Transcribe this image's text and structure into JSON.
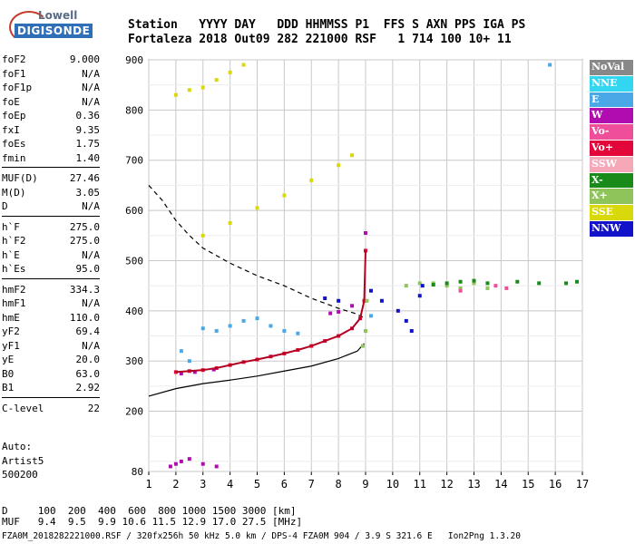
{
  "logo": {
    "top": "Lowell",
    "bottom": "DIGISONDE"
  },
  "header": {
    "labels": "Station   YYYY DAY   DDD HHMMSS P1  FFS S AXN PPS IGA PS",
    "values": "Fortaleza 2018 Out09 282 221000 RSF   1 714 100 10+ 11"
  },
  "params": {
    "group1": [
      {
        "name": "foF2",
        "value": "9.000"
      },
      {
        "name": "foF1",
        "value": "N/A"
      },
      {
        "name": "foF1p",
        "value": "N/A"
      },
      {
        "name": "foE",
        "value": "N/A"
      },
      {
        "name": "foEp",
        "value": "0.36"
      },
      {
        "name": "fxI",
        "value": "9.35"
      },
      {
        "name": "foEs",
        "value": "1.75"
      },
      {
        "name": "fmin",
        "value": "1.40"
      }
    ],
    "group2": [
      {
        "name": "MUF(D)",
        "value": "27.46"
      },
      {
        "name": "M(D)",
        "value": "3.05"
      },
      {
        "name": "D",
        "value": "N/A"
      }
    ],
    "group3": [
      {
        "name": "h`F",
        "value": "275.0"
      },
      {
        "name": "h`F2",
        "value": "275.0"
      },
      {
        "name": "h`E",
        "value": "N/A"
      },
      {
        "name": "h`Es",
        "value": "95.0"
      }
    ],
    "group4": [
      {
        "name": "hmF2",
        "value": "334.3"
      },
      {
        "name": "hmF1",
        "value": "N/A"
      },
      {
        "name": "hmE",
        "value": "110.0"
      },
      {
        "name": "yF2",
        "value": "69.4"
      },
      {
        "name": "yF1",
        "value": "N/A"
      },
      {
        "name": "yE",
        "value": "20.0"
      },
      {
        "name": "B0",
        "value": "63.0"
      },
      {
        "name": "B1",
        "value": "2.92"
      }
    ],
    "group5": [
      {
        "name": "C-level",
        "value": "22"
      }
    ]
  },
  "auto": {
    "line1": "Auto:",
    "line2": "Artist5",
    "line3": "500200"
  },
  "legend": [
    {
      "label": "NoVal",
      "color": "#888888"
    },
    {
      "label": "NNE",
      "color": "#33d6f0"
    },
    {
      "label": "E",
      "color": "#4aa8e6"
    },
    {
      "label": "W",
      "color": "#b00cb0"
    },
    {
      "label": "Vo-",
      "color": "#ef4f9a"
    },
    {
      "label": "Vo+",
      "color": "#e3063a"
    },
    {
      "label": "SSW",
      "color": "#f7a8b8"
    },
    {
      "label": "X-",
      "color": "#1a8a1a"
    },
    {
      "label": "X+",
      "color": "#8ec45a"
    },
    {
      "label": "SSE",
      "color": "#d8d80a"
    },
    {
      "label": "NNW",
      "color": "#1212c8"
    }
  ],
  "muf_table": {
    "d_row": "D     100  200  400  600  800 1000 1500 3000 [km]",
    "muf_row": "MUF   9.4  9.5  9.9 10.6 11.5 12.9 17.0 27.5 [MHz]"
  },
  "footer": "FZA0M_2018282221000.RSF / 320fx256h 50 kHz 5.0 km / DPS-4 FZA0M 904 / 3.9 S 321.6 E   Ion2Png 1.3.20",
  "chart_data": {
    "type": "scatter",
    "title": "",
    "xlabel": "",
    "ylabel": "",
    "xlim": [
      1,
      17
    ],
    "ylim": [
      80,
      900
    ],
    "x_ticks": [
      1,
      2,
      3,
      4,
      5,
      6,
      7,
      8,
      9,
      10,
      11,
      12,
      13,
      14,
      15,
      16,
      17
    ],
    "y_ticks": [
      80,
      200,
      300,
      400,
      500,
      600,
      700,
      800,
      900
    ],
    "grid": true,
    "series": [
      {
        "name": "Vo+",
        "color": "#e3063a",
        "points": [
          [
            2.0,
            278
          ],
          [
            2.5,
            280
          ],
          [
            3,
            282
          ],
          [
            3.5,
            286
          ],
          [
            4,
            292
          ],
          [
            4.5,
            298
          ],
          [
            5,
            303
          ],
          [
            5.5,
            309
          ],
          [
            6,
            315
          ],
          [
            6.5,
            322
          ],
          [
            7,
            330
          ],
          [
            7.5,
            340
          ],
          [
            8,
            350
          ],
          [
            8.5,
            365
          ],
          [
            8.8,
            385
          ],
          [
            8.95,
            420
          ],
          [
            9.0,
            520
          ]
        ]
      },
      {
        "name": "X+",
        "color": "#8ec45a",
        "points": [
          [
            8.9,
            330
          ],
          [
            9.0,
            360
          ],
          [
            9.05,
            420
          ],
          [
            10.5,
            450
          ],
          [
            11,
            455
          ],
          [
            11.5,
            455
          ],
          [
            12,
            450
          ],
          [
            12.5,
            445
          ],
          [
            13,
            455
          ],
          [
            13.5,
            445
          ]
        ]
      },
      {
        "name": "X-",
        "color": "#1a8a1a",
        "points": [
          [
            11.5,
            452
          ],
          [
            12,
            455
          ],
          [
            12.5,
            458
          ],
          [
            13,
            460
          ],
          [
            13.5,
            455
          ],
          [
            14.6,
            458
          ],
          [
            15.4,
            455
          ],
          [
            16.4,
            455
          ],
          [
            16.8,
            458
          ]
        ]
      },
      {
        "name": "NNW",
        "color": "#1212c8",
        "points": [
          [
            7.5,
            425
          ],
          [
            8,
            420
          ],
          [
            9.2,
            440
          ],
          [
            9.6,
            420
          ],
          [
            10.2,
            400
          ],
          [
            10.5,
            380
          ],
          [
            10.7,
            360
          ],
          [
            11,
            430
          ],
          [
            11.1,
            450
          ]
        ]
      },
      {
        "name": "E",
        "color": "#4aa8e6",
        "points": [
          [
            3,
            365
          ],
          [
            3.5,
            360
          ],
          [
            4,
            370
          ],
          [
            4.5,
            380
          ],
          [
            5,
            385
          ],
          [
            5.5,
            370
          ],
          [
            6,
            360
          ],
          [
            6.5,
            355
          ],
          [
            2.2,
            320
          ],
          [
            2.5,
            300
          ],
          [
            9.2,
            390
          ],
          [
            15.8,
            890
          ]
        ]
      },
      {
        "name": "W",
        "color": "#b00cb0",
        "points": [
          [
            2.2,
            275
          ],
          [
            2.7,
            278
          ],
          [
            3.4,
            283
          ],
          [
            7.7,
            395
          ],
          [
            8.0,
            398
          ],
          [
            8.5,
            410
          ],
          [
            9,
            555
          ]
        ]
      },
      {
        "name": "SSE",
        "color": "#d8d80a",
        "points": [
          [
            2,
            830
          ],
          [
            2.5,
            840
          ],
          [
            3,
            845
          ],
          [
            3.5,
            860
          ],
          [
            4,
            875
          ],
          [
            4.5,
            890
          ],
          [
            3,
            550
          ],
          [
            4,
            575
          ],
          [
            5,
            605
          ],
          [
            6,
            630
          ],
          [
            7,
            660
          ],
          [
            8,
            690
          ],
          [
            8.5,
            710
          ]
        ]
      },
      {
        "name": "Vo-",
        "color": "#ef4f9a",
        "points": [
          [
            13.8,
            450
          ],
          [
            14.2,
            445
          ],
          [
            12.5,
            440
          ]
        ]
      },
      {
        "name": "Es",
        "color": "#b00cb0",
        "points": [
          [
            1.8,
            90
          ],
          [
            2,
            95
          ],
          [
            2.2,
            100
          ],
          [
            2.5,
            105
          ],
          [
            3,
            95
          ],
          [
            3.5,
            90
          ]
        ]
      }
    ],
    "profile_line": {
      "style": "solid",
      "points": [
        [
          1,
          230
        ],
        [
          2,
          245
        ],
        [
          3,
          255
        ],
        [
          4,
          262
        ],
        [
          5,
          270
        ],
        [
          6,
          280
        ],
        [
          7,
          290
        ],
        [
          8,
          305
        ],
        [
          8.7,
          320
        ],
        [
          8.95,
          335
        ]
      ]
    },
    "muf_curve": {
      "style": "dashed",
      "points": [
        [
          1,
          650
        ],
        [
          1.5,
          620
        ],
        [
          2,
          580
        ],
        [
          2.5,
          550
        ],
        [
          3,
          525
        ],
        [
          4,
          495
        ],
        [
          5,
          470
        ],
        [
          6,
          450
        ],
        [
          7,
          425
        ],
        [
          8,
          405
        ],
        [
          8.6,
          395
        ],
        [
          9,
          385
        ]
      ]
    }
  }
}
